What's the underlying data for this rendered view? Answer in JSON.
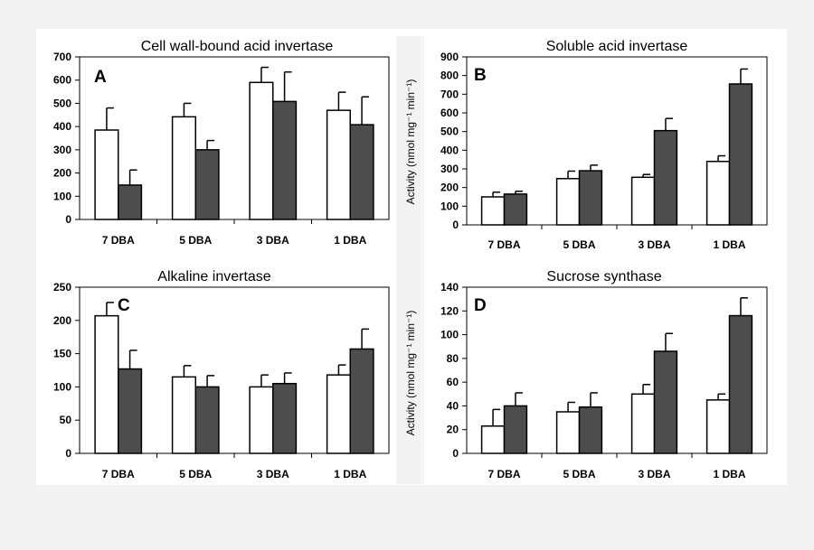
{
  "colors": {
    "control": "#ffffff",
    "treatment": "#4d4d4d",
    "outline": "#000000",
    "background": "#f3f3f3"
  },
  "chart_data": [
    {
      "type": "bar",
      "panel": "A",
      "title": "Cell wall-bound acid invertase",
      "ylabel": "",
      "categories": [
        "7 DBA",
        "5 DBA",
        "3 DBA",
        "1 DBA"
      ],
      "ylim": [
        0,
        700
      ],
      "yticks": [
        "0",
        "100",
        "200",
        "300",
        "400",
        "500",
        "600",
        "700"
      ],
      "series": [
        {
          "values": [
            385,
            442,
            590,
            470
          ],
          "errors": [
            95,
            58,
            65,
            78
          ]
        },
        {
          "values": [
            148,
            300,
            508,
            408
          ],
          "errors": [
            65,
            40,
            127,
            120
          ]
        }
      ]
    },
    {
      "type": "bar",
      "panel": "B",
      "title": "Soluble acid invertase",
      "ylabel": "Activity (nmol mg⁻¹ min⁻¹)",
      "categories": [
        "7 DBA",
        "5 DBA",
        "3 DBA",
        "1 DBA"
      ],
      "ylim": [
        0,
        900
      ],
      "yticks": [
        "0",
        "100",
        "200",
        "300",
        "400",
        "500",
        "600",
        "700",
        "800",
        "900"
      ],
      "series": [
        {
          "values": [
            150,
            248,
            255,
            340
          ],
          "errors": [
            25,
            40,
            15,
            30
          ]
        },
        {
          "values": [
            165,
            290,
            505,
            755
          ],
          "errors": [
            15,
            30,
            65,
            80
          ]
        }
      ]
    },
    {
      "type": "bar",
      "panel": "C",
      "title": "Alkaline invertase",
      "ylabel": "",
      "categories": [
        "7 DBA",
        "5 DBA",
        "3 DBA",
        "1 DBA"
      ],
      "ylim": [
        0,
        250
      ],
      "yticks": [
        "0",
        "50",
        "100",
        "150",
        "200",
        "250"
      ],
      "series": [
        {
          "values": [
            207,
            115,
            100,
            118
          ],
          "errors": [
            20,
            17,
            18,
            15
          ]
        },
        {
          "values": [
            127,
            100,
            105,
            157
          ],
          "errors": [
            28,
            17,
            16,
            30
          ]
        }
      ]
    },
    {
      "type": "bar",
      "panel": "D",
      "title": "Sucrose synthase",
      "ylabel": "Activity (nmol mg⁻¹ min⁻¹)",
      "categories": [
        "7 DBA",
        "5 DBA",
        "3 DBA",
        "1 DBA"
      ],
      "ylim": [
        0,
        140
      ],
      "yticks": [
        "0",
        "20",
        "40",
        "60",
        "80",
        "100",
        "120",
        "140"
      ],
      "series": [
        {
          "values": [
            23,
            35,
            50,
            45
          ],
          "errors": [
            14,
            8,
            8,
            5
          ]
        },
        {
          "values": [
            40,
            39,
            86,
            116
          ],
          "errors": [
            11,
            12,
            15,
            15
          ]
        }
      ]
    }
  ]
}
